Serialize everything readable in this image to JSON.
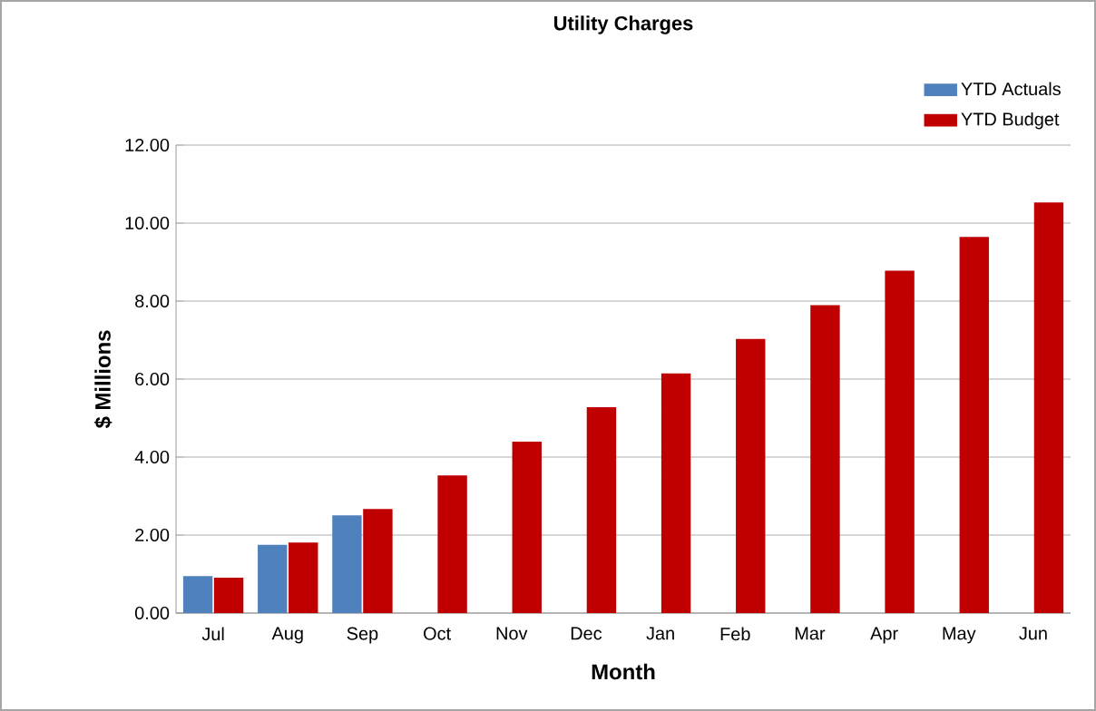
{
  "chart_data": {
    "type": "bar",
    "title": "Utility Charges",
    "xlabel": "Month",
    "ylabel": "$ Millions",
    "categories": [
      "Jul",
      "Aug",
      "Sep",
      "Oct",
      "Nov",
      "Dec",
      "Jan",
      "Feb",
      "Mar",
      "Apr",
      "May",
      "Jun"
    ],
    "series": [
      {
        "name": "YTD Actuals",
        "color": "#4f81bd",
        "values": [
          0.92,
          1.72,
          2.48,
          null,
          null,
          null,
          null,
          null,
          null,
          null,
          null,
          null
        ]
      },
      {
        "name": "YTD Budget",
        "color": "#c00000",
        "values": [
          0.88,
          1.78,
          2.64,
          3.5,
          4.37,
          5.25,
          6.12,
          7.0,
          7.87,
          8.75,
          9.62,
          10.5
        ]
      }
    ],
    "ylim": [
      0,
      12
    ],
    "yticks": [
      {
        "value": 0,
        "label": "0.00"
      },
      {
        "value": 2,
        "label": "2.00"
      },
      {
        "value": 4,
        "label": "4.00"
      },
      {
        "value": 6,
        "label": "6.00"
      },
      {
        "value": 8,
        "label": "8.00"
      },
      {
        "value": 10,
        "label": "10.00"
      },
      {
        "value": 12,
        "label": "12.00"
      }
    ],
    "grid": "y",
    "legend": "top right"
  }
}
